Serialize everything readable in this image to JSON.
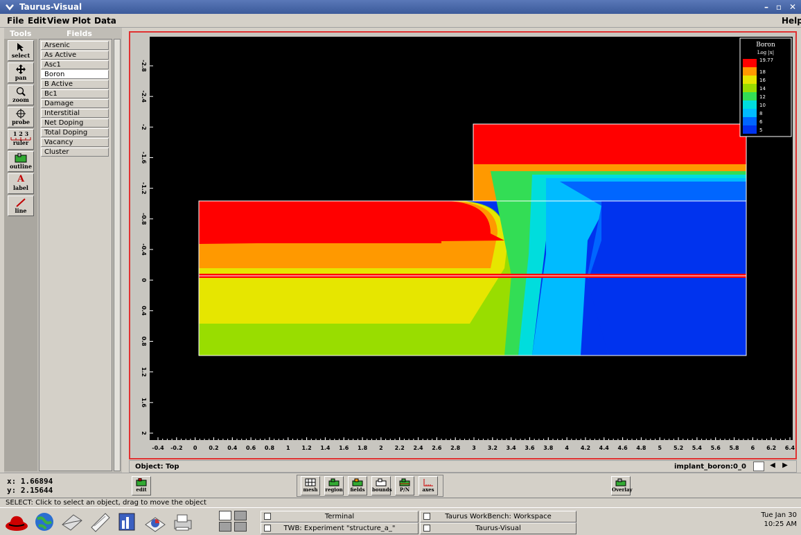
{
  "window": {
    "title": "Taurus-Visual",
    "controls": [
      "–",
      "▫",
      "✕"
    ]
  },
  "menu": {
    "file": "File",
    "edit": "Edit",
    "view": "View",
    "plot": "Plot",
    "data": "Data",
    "help": "Help"
  },
  "left_panel": {
    "tools_header": "Tools",
    "fields_header": "Fields",
    "tools": [
      {
        "label": "select",
        "icon": "arrow-icon"
      },
      {
        "label": "pan",
        "icon": "move-icon"
      },
      {
        "label": "zoom",
        "icon": "magnifier-icon"
      },
      {
        "label": "probe",
        "icon": "crosshair-icon"
      },
      {
        "label": "ruler",
        "icon": "ruler-icon"
      },
      {
        "label": "outline",
        "icon": "outline-icon"
      },
      {
        "label": "label",
        "icon": "letter-a-icon"
      },
      {
        "label": "line",
        "icon": "line-icon"
      }
    ],
    "ruler_digits": "1 2 3",
    "label_letter": "A",
    "fields": [
      "Arsenic",
      "As Active",
      "Asc1",
      "Boron",
      "B Active",
      "Bc1",
      "Damage",
      "Interstitial",
      "Net Doping",
      "Total Doping",
      "Vacancy",
      "Cluster"
    ],
    "selected_field": "Boron"
  },
  "legend": {
    "title": "Boron",
    "subtitle": "Log |x|",
    "entries": [
      {
        "label": "19.77",
        "color": "#ff0000"
      },
      {
        "label": "18",
        "color": "#ff9900"
      },
      {
        "label": "16",
        "color": "#e6e600"
      },
      {
        "label": "14",
        "color": "#99dd00"
      },
      {
        "label": "12",
        "color": "#33dd55"
      },
      {
        "label": "10",
        "color": "#00dddd"
      },
      {
        "label": "8",
        "color": "#00bbff"
      },
      {
        "label": "6",
        "color": "#0066ff"
      },
      {
        "label": "5",
        "color": "#0033ee"
      }
    ]
  },
  "chart_data": {
    "type": "heatmap",
    "title": "",
    "xlabel": "",
    "ylabel": "",
    "xlim": [
      -0.5,
      6.5
    ],
    "ylim": [
      -3.1,
      2.2
    ],
    "x_ticks": [
      "-0.4",
      "-0.2",
      "0",
      "0.2",
      "0.4",
      "0.6",
      "0.8",
      "1",
      "1.2",
      "1.4",
      "1.6",
      "1.8",
      "2",
      "2.2",
      "2.4",
      "2.6",
      "2.8",
      "3",
      "3.2",
      "3.4",
      "3.6",
      "3.8",
      "4",
      "4.2",
      "4.4",
      "4.6",
      "4.8",
      "5",
      "5.2",
      "5.4",
      "5.6",
      "5.8",
      "6",
      "6.2",
      "6.4"
    ],
    "y_ticks": [
      "-2.8",
      "-2.4",
      "-2",
      "-1.6",
      "-1.2",
      "-0.8",
      "-0.4",
      "0",
      "0.4",
      "0.8",
      "1.2",
      "1.6",
      "2"
    ],
    "background": "#000000",
    "grid": false,
    "legend_position": "top-right"
  },
  "plot_colors": {
    "frame": "#e03030",
    "outline": "#ffffff"
  },
  "object_bar": {
    "label": "Object: Top",
    "dataset": "implant_boron:0_0"
  },
  "coords": {
    "x": "x:  1.66894",
    "y": "y:  2.15644"
  },
  "bottom_tools": {
    "edit": "edit",
    "mesh": "mesh",
    "region": "region",
    "fields": "fields",
    "bounds": "bounds",
    "pn": "P/N",
    "axes": "axes",
    "overlay": "Overlay"
  },
  "status": "SELECT: Click to select an object, drag to move the object",
  "taskbar": {
    "items": [
      "Terminal",
      "Taurus WorkBench: Workspace",
      "TWB: Experiment \"structure_a_\"",
      "Taurus-Visual"
    ],
    "clock_day": "Tue Jan 30",
    "clock_time": "10:25 AM"
  }
}
